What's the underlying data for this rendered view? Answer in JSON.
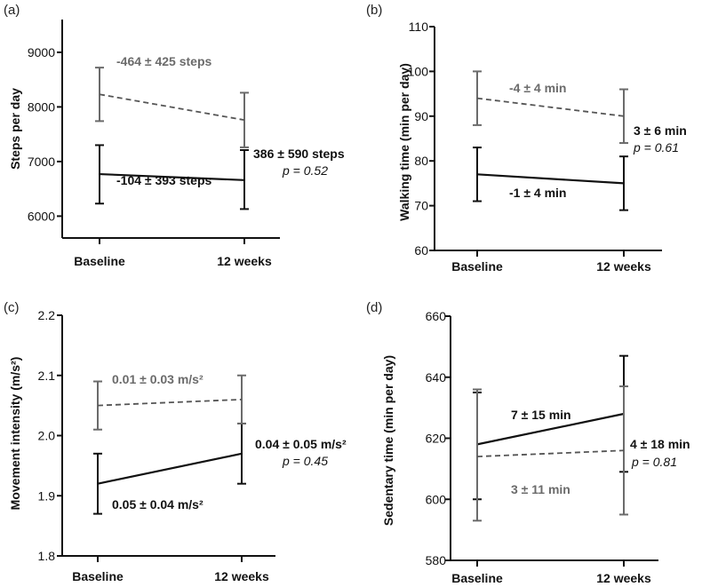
{
  "colors": {
    "baseline_series": "#111111",
    "followup_series": "#6b6b6b"
  },
  "chart_data": [
    {
      "panel": "(a)",
      "type": "line",
      "ylabel": "Steps per day",
      "categories": [
        "Baseline",
        "12 weeks"
      ],
      "ylim": [
        5600,
        9600
      ],
      "yticks": [
        6000,
        7000,
        8000,
        9000
      ],
      "series": [
        {
          "name": "solid",
          "style": "solid",
          "values": [
            6770,
            6660
          ],
          "err_low": [
            6230,
            6130
          ],
          "err_high": [
            7300,
            7210
          ]
        },
        {
          "name": "dashed",
          "style": "dashed",
          "values": [
            8230,
            7760
          ],
          "err_low": [
            7740,
            7260
          ],
          "err_high": [
            8720,
            8260
          ]
        }
      ],
      "annotations": {
        "dashed_change": "-464 ± 425 steps",
        "solid_change": "-104 ± 393 steps",
        "diff": "386 ± 590 steps",
        "p": "p = 0.52"
      }
    },
    {
      "panel": "(b)",
      "type": "line",
      "ylabel": "Walking time (min per day)",
      "categories": [
        "Baseline",
        "12 weeks"
      ],
      "ylim": [
        60,
        110
      ],
      "yticks": [
        60,
        70,
        80,
        90,
        100,
        110
      ],
      "series": [
        {
          "name": "solid",
          "style": "solid",
          "values": [
            77,
            75
          ],
          "err_low": [
            71,
            69
          ],
          "err_high": [
            83,
            81
          ]
        },
        {
          "name": "dashed",
          "style": "dashed",
          "values": [
            94,
            90
          ],
          "err_low": [
            88,
            84
          ],
          "err_high": [
            100,
            96
          ]
        }
      ],
      "annotations": {
        "dashed_change": "-4 ± 4 min",
        "solid_change": "-1 ± 4 min",
        "diff": "3 ± 6 min",
        "p": "p = 0.61"
      }
    },
    {
      "panel": "(c)",
      "type": "line",
      "ylabel": "Movement intensity (m/s²)",
      "categories": [
        "Baseline",
        "12 weeks"
      ],
      "ylim": [
        1.8,
        2.2
      ],
      "yticks": [
        "1.8",
        "1.9",
        "2.0",
        "2.1",
        "2.2"
      ],
      "series": [
        {
          "name": "solid",
          "style": "solid",
          "values": [
            1.92,
            1.97
          ],
          "err_low": [
            1.87,
            1.92
          ],
          "err_high": [
            1.97,
            2.02
          ]
        },
        {
          "name": "dashed",
          "style": "dashed",
          "values": [
            2.05,
            2.06
          ],
          "err_low": [
            2.01,
            2.02
          ],
          "err_high": [
            2.09,
            2.1
          ]
        }
      ],
      "annotations": {
        "dashed_change": "0.01 ± 0.03 m/s²",
        "solid_change": "0.05 ± 0.04 m/s²",
        "diff": "0.04 ± 0.05 m/s²",
        "p": "p = 0.45"
      }
    },
    {
      "panel": "(d)",
      "type": "line",
      "ylabel": "Sedentary time (min per day)",
      "categories": [
        "Baseline",
        "12 weeks"
      ],
      "ylim": [
        580,
        660
      ],
      "yticks": [
        580,
        600,
        620,
        640,
        660
      ],
      "series": [
        {
          "name": "solid",
          "style": "solid",
          "values": [
            618,
            628
          ],
          "err_low": [
            600,
            609
          ],
          "err_high": [
            635,
            647
          ]
        },
        {
          "name": "dashed",
          "style": "dashed",
          "values": [
            614,
            616
          ],
          "err_low": [
            593,
            595
          ],
          "err_high": [
            636,
            637
          ]
        }
      ],
      "annotations": {
        "solid_change": "7 ± 15 min",
        "dashed_change": "3 ± 11 min",
        "diff": "4 ± 18 min",
        "p": "p = 0.81"
      }
    }
  ]
}
